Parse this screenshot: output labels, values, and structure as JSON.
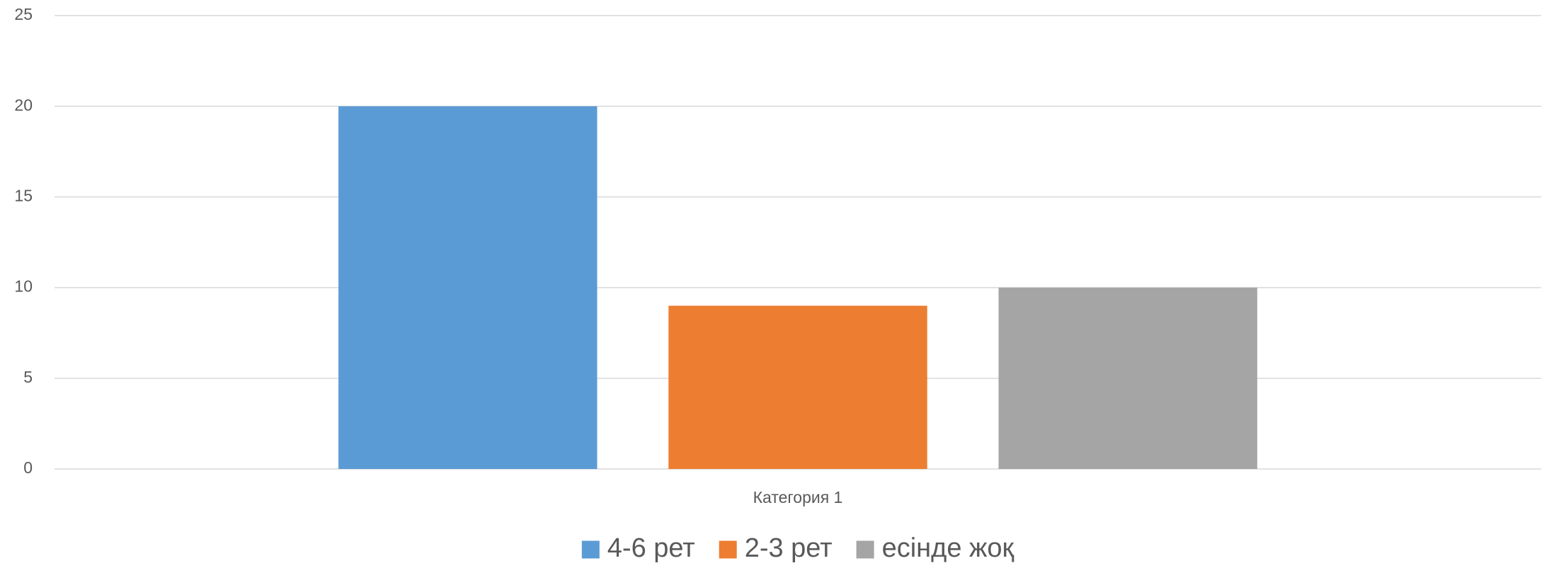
{
  "chart_data": {
    "type": "bar",
    "categories": [
      "Категория 1"
    ],
    "series": [
      {
        "name": "4-6 рет",
        "color": "#5b9bd5",
        "values": [
          20
        ]
      },
      {
        "name": "2-3 рет",
        "color": "#ed7d31",
        "values": [
          9
        ]
      },
      {
        "name": "есінде жоқ",
        "color": "#a5a5a5",
        "values": [
          10
        ]
      }
    ],
    "ylim": [
      0,
      25
    ],
    "yticks": [
      0,
      5,
      10,
      15,
      20,
      25
    ],
    "grid": true,
    "legend": "bottom"
  }
}
